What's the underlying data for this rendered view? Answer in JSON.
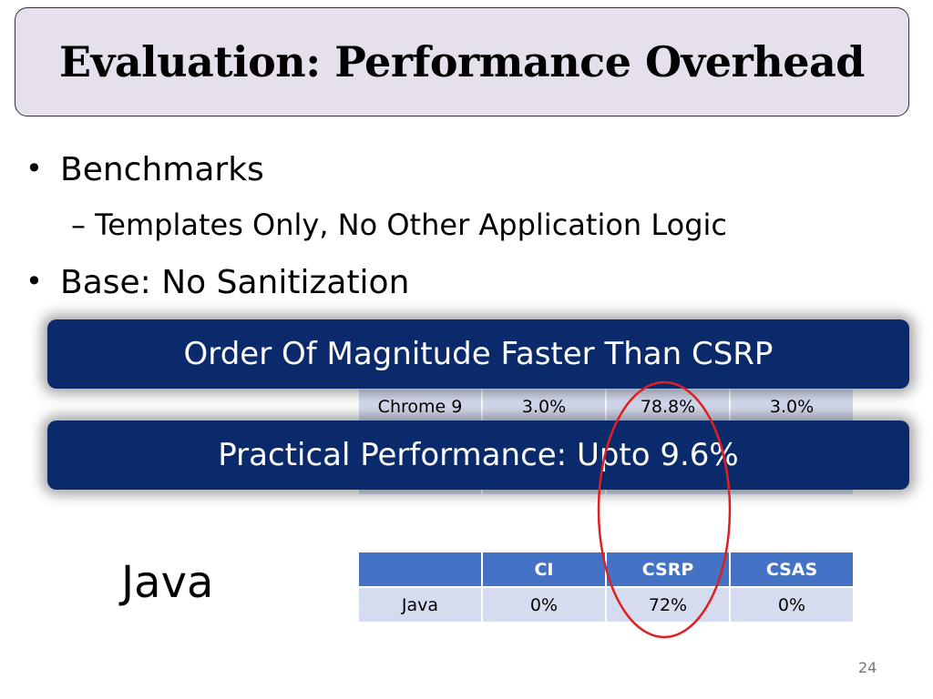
{
  "slide": {
    "title": "Evaluation: Performance Overhead",
    "bullets": [
      {
        "text": "Benchmarks",
        "dot": "•"
      },
      {
        "text": "Base: No Sanitization",
        "dot": "•"
      }
    ],
    "sub_bullet": "– Templates Only, No Other Application Logic",
    "callouts": [
      "Order Of Magnitude Faster Than CSRP",
      "Practical Performance: Upto 9.6%"
    ],
    "browser_table": {
      "visible_row": [
        "Chrome 9",
        "3.0%",
        "78.8%",
        "3.0%"
      ]
    },
    "java_label": "Java",
    "java_table": {
      "headers": [
        "",
        "CI",
        "CSRP",
        "CSAS"
      ],
      "row": [
        "Java",
        "0%",
        "72%",
        "0%"
      ]
    },
    "page_number": "24"
  },
  "colors": {
    "title_bg": "#e6dfec",
    "callout_bg": "#0a2a6c",
    "table_header": "#4472c4",
    "table_cell": "#d5dcef",
    "highlight_ellipse": "#e02020"
  }
}
